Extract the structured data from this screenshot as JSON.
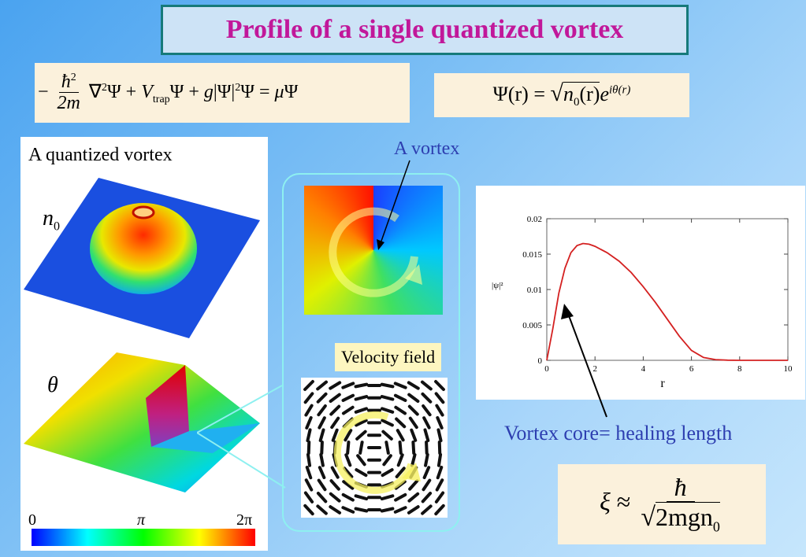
{
  "title": "Profile of a single quantized vortex",
  "equations": {
    "gpe": {
      "minus": "−",
      "hbar_sq": "ħ",
      "sq": "2",
      "two_m": "2m",
      "nabla": "∇",
      "nabla_sq": "2",
      "psi": "Ψ",
      "plus1": "+",
      "v": "V",
      "trap": "trap",
      "plus2": "+",
      "g": "g",
      "abs_psi": "|Ψ|",
      "abs_sq": "2",
      "psi2": "Ψ",
      "equals": "=",
      "mu": "μ",
      "psi3": "Ψ"
    },
    "wavefunction": {
      "lhs": "Ψ(r)",
      "equals": "=",
      "n0": "n",
      "n0_sub": "0",
      "n0_arg": "(r)",
      "e": "e",
      "exponent": "iθ(r)"
    },
    "healing": {
      "xi": "ξ",
      "approx": "≈",
      "numerator": "ħ",
      "denominator": "2mgn",
      "den_sub": "0"
    }
  },
  "left_panel": {
    "heading": "A quantized vortex",
    "n0_label": "n",
    "n0_sub": "0",
    "theta_label": "θ",
    "colorbar_ticks": [
      "0",
      "π",
      "2π"
    ],
    "colors": [
      "#0000ff",
      "#00ffff",
      "#00ff00",
      "#ffff00",
      "#ff0000"
    ]
  },
  "center_panel": {
    "vortex_label": "A vortex",
    "velocity_label": "Velocity field"
  },
  "core_label": "Vortex core= healing length",
  "chart_data": {
    "type": "line",
    "title": "",
    "xlabel": "r",
    "ylabel": "|ψ|²",
    "xlim": [
      0,
      10
    ],
    "ylim": [
      0,
      0.02
    ],
    "xticks": [
      0,
      2,
      4,
      6,
      8,
      10
    ],
    "yticks": [
      0,
      0.005,
      0.01,
      0.015,
      0.02
    ],
    "ytick_labels": [
      "0",
      "0.005",
      "0.01",
      "0.015",
      "0.02"
    ],
    "grid": false,
    "series": [
      {
        "color": "#d42020",
        "x": [
          0,
          0.25,
          0.5,
          0.75,
          1.0,
          1.25,
          1.5,
          1.75,
          2.0,
          2.5,
          3.0,
          3.5,
          4.0,
          4.5,
          5.0,
          5.5,
          6.0,
          6.5,
          7.0,
          7.5,
          8.0,
          9.0,
          10.0
        ],
        "y": [
          0,
          0.0045,
          0.0095,
          0.013,
          0.0152,
          0.0162,
          0.0165,
          0.0164,
          0.0161,
          0.0152,
          0.014,
          0.0124,
          0.0104,
          0.0082,
          0.0058,
          0.0034,
          0.0014,
          0.0004,
          0.0001,
          2e-05,
          0,
          0,
          0
        ]
      }
    ]
  }
}
